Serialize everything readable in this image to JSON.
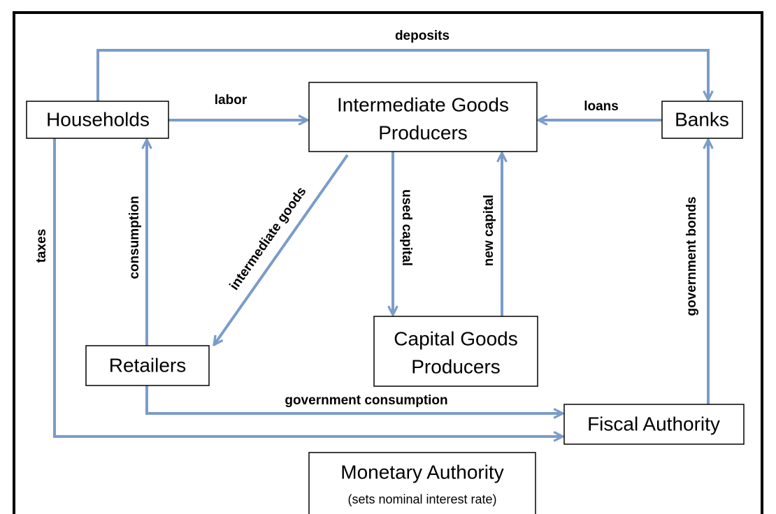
{
  "nodes": [
    {
      "lines": [
        "Households"
      ]
    },
    {
      "lines": [
        "Intermediate Goods",
        "Producers"
      ]
    },
    {
      "lines": [
        "Banks"
      ]
    },
    {
      "lines": [
        "Retailers"
      ]
    },
    {
      "lines": [
        "Capital Goods",
        "Producers"
      ]
    },
    {
      "lines": [
        "Fiscal Authority"
      ]
    },
    {
      "lines": [
        "Monetary Authority"
      ],
      "note": "(sets nominal interest rate)"
    }
  ],
  "edges": [
    {
      "label": "deposits"
    },
    {
      "label": "labor"
    },
    {
      "label": "loans"
    },
    {
      "label": "taxes"
    },
    {
      "label": "consumption"
    },
    {
      "label": "intermediate goods"
    },
    {
      "label": "used capital"
    },
    {
      "label": "new capital"
    },
    {
      "label": "government consumption"
    },
    {
      "label": "government bonds"
    }
  ]
}
